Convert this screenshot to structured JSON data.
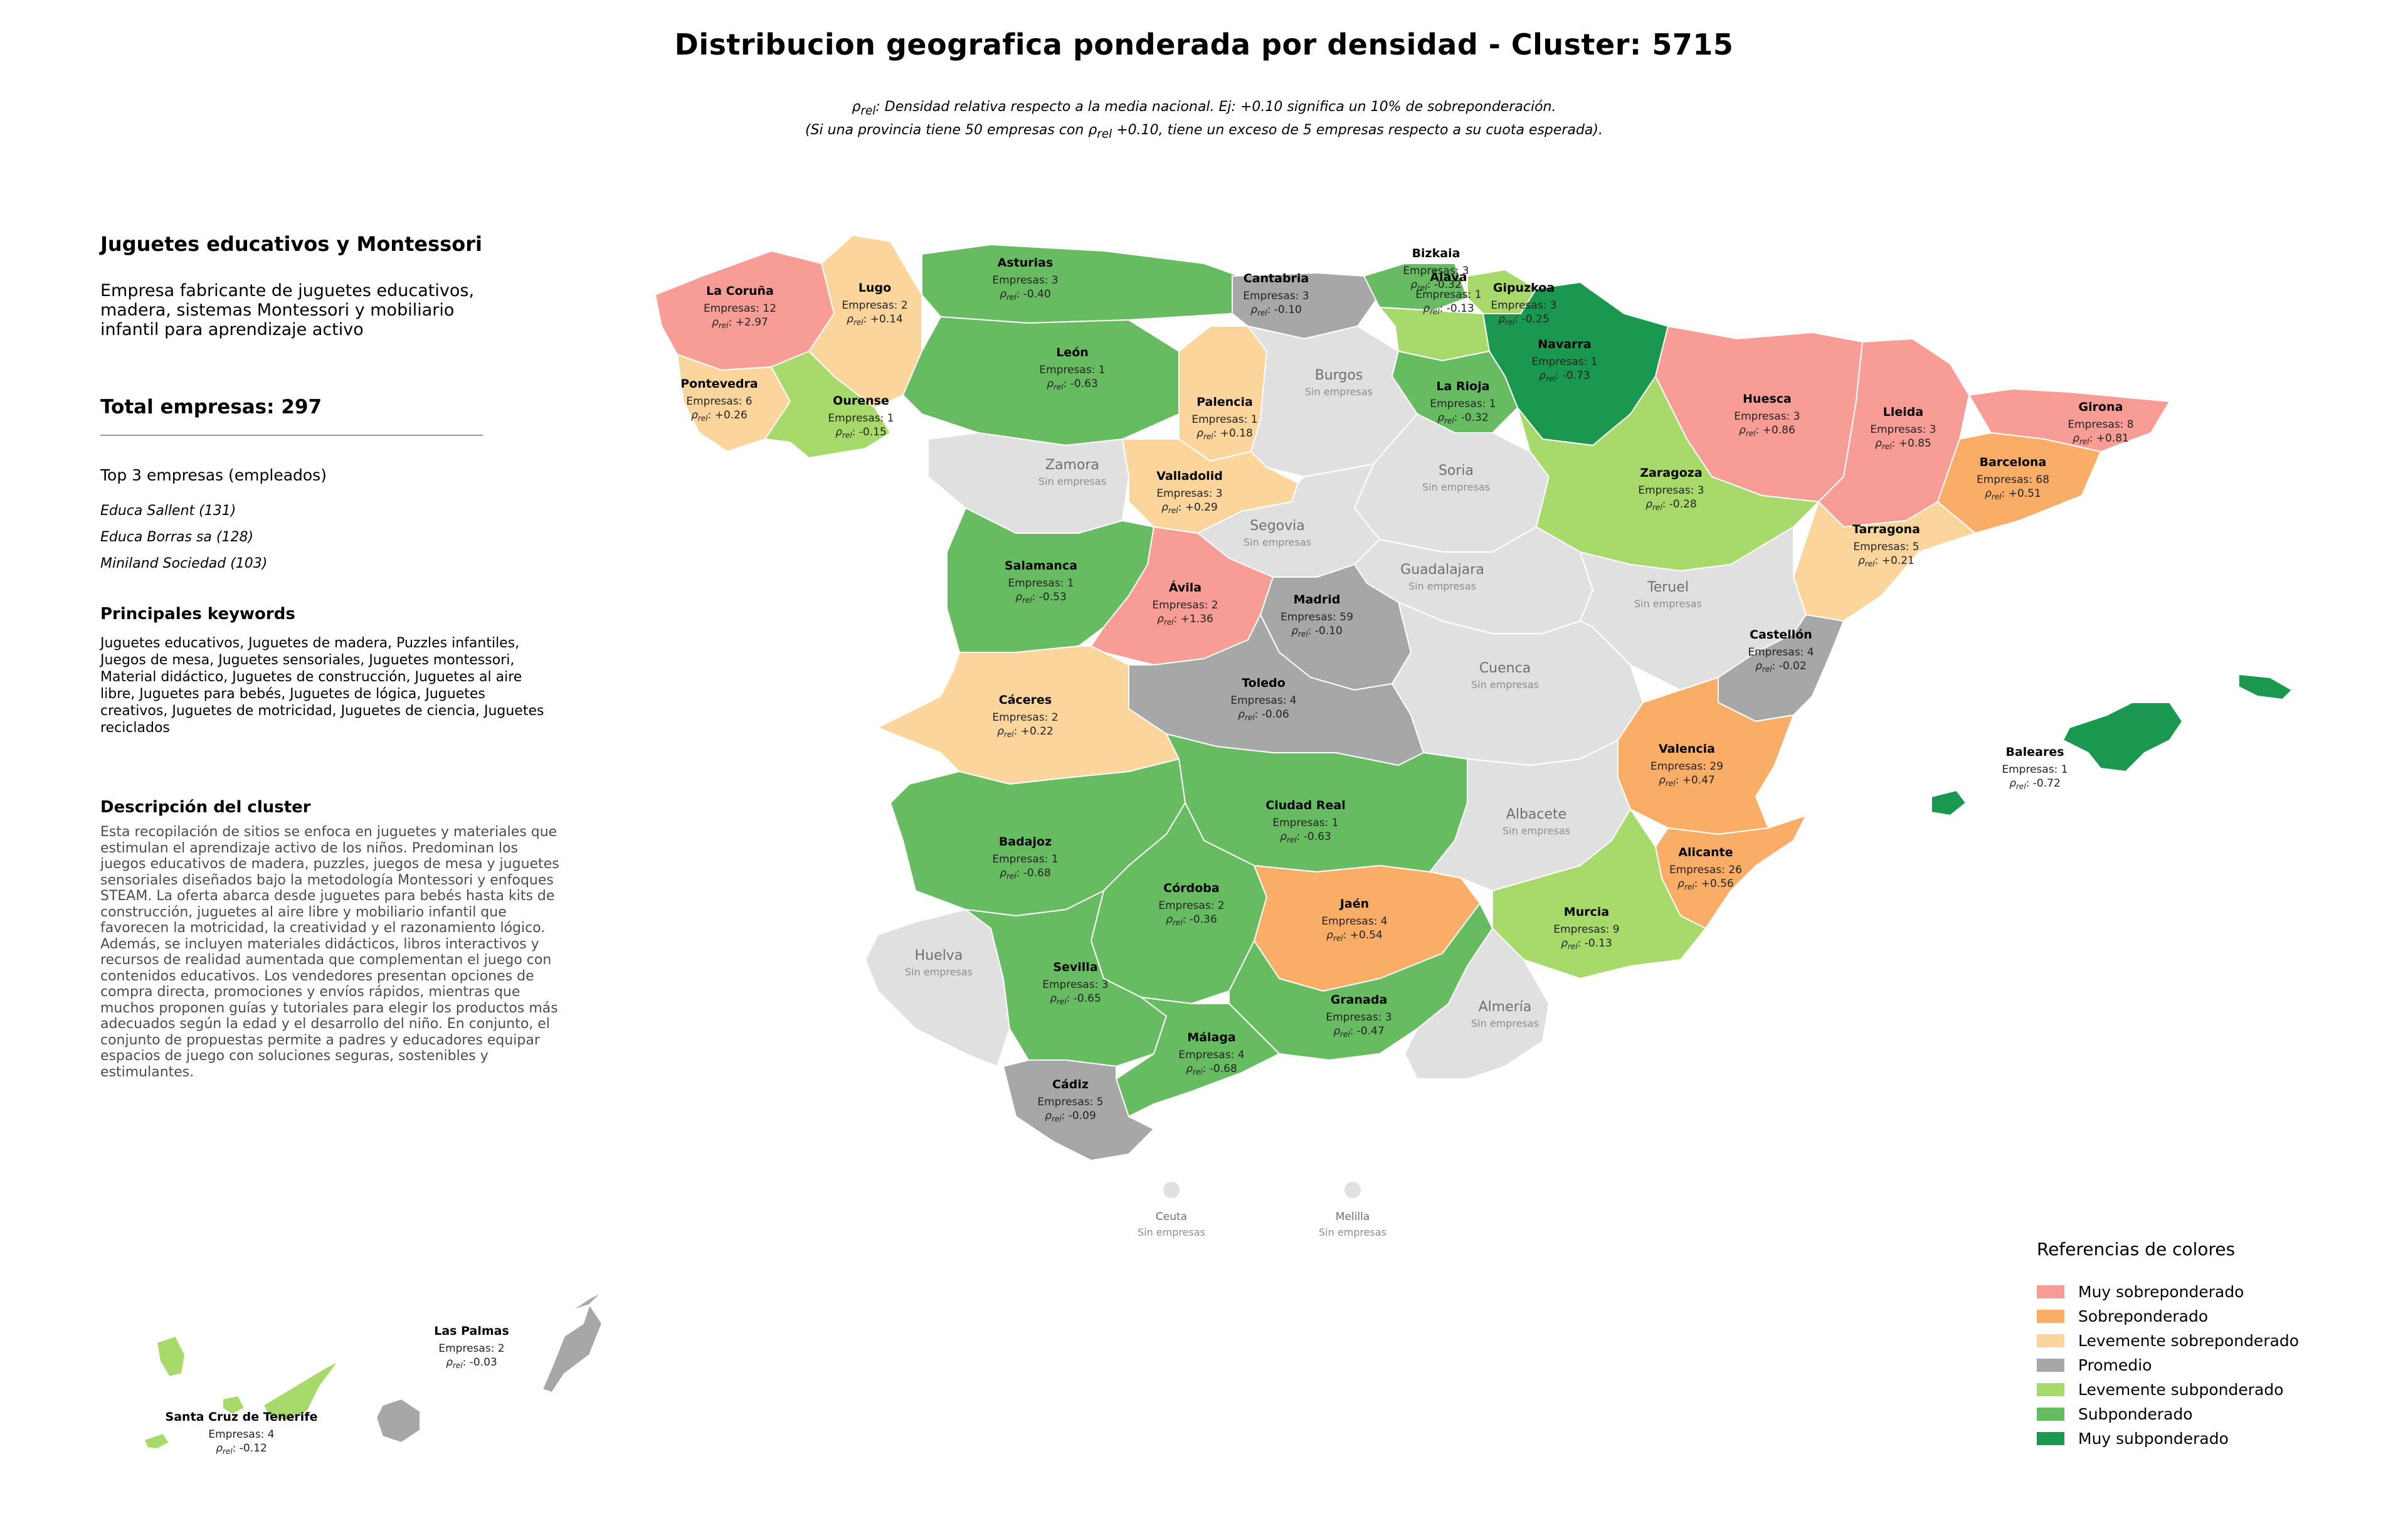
{
  "title": "Distribucion geografica ponderada por densidad - Cluster: 5715",
  "note": {
    "line1_pre": "ρ",
    "line1_sub": "rel",
    "line1_post": ": Densidad relativa respecto a la media nacional. Ej: +0.10 significa un 10% de sobreponderación.",
    "line2_pre": "(Si una provincia tiene 50 empresas con ρ",
    "line2_sub": "rel",
    "line2_post": " +0.10, tiene un exceso de 5 empresas respecto a su cuota esperada)."
  },
  "panel": {
    "cluster_name": "Juguetes educativos y Montessori",
    "cluster_summary": "Empresa fabricante de juguetes educativos, madera, sistemas Montessori y mobiliario infantil para aprendizaje activo",
    "total": "Total empresas: 297",
    "top_heading": "Top 3 empresas (empleados)",
    "top_companies": [
      "Educa Sallent (131)",
      "Educa Borras sa (128)",
      "Miniland Sociedad (103)"
    ],
    "keywords_heading": "Principales keywords",
    "keywords": "Juguetes educativos, Juguetes de madera, Puzzles infantiles, Juegos de mesa, Juguetes sensoriales, Juguetes montessori, Material didáctico, Juguetes de construcción, Juguetes al aire libre, Juguetes para bebés, Juguetes de lógica, Juguetes creativos, Juguetes de motricidad, Juguetes de ciencia, Juguetes reciclados",
    "description_heading": "Descripción del cluster",
    "description": "Esta recopilación de sitios se enfoca en juguetes y materiales que estimulan el aprendizaje activo de los niños. Predominan los juegos educativos de madera, puzzles, juegos de mesa y juguetes sensoriales diseñados bajo la metodología Montessori y enfoques STEAM. La oferta abarca desde juguetes para bebés hasta kits de construcción, juguetes al aire libre y mobiliario infantil que favorecen la motricidad, la creatividad y el razonamiento lógico. Además, se incluyen materiales didácticos, libros interactivos y recursos de realidad aumentada que complementan el juego con contenidos educativos. Los vendedores presentan opciones de compra directa, promociones y envíos rápidos, mientras que muchos proponen guías y tutoriales para elegir los productos más adecuados según la edad y el desarrollo del niño. En conjunto, el conjunto de propuestas permite a padres y educadores equipar espacios de juego con soluciones seguras, sostenibles y estimulantes."
  },
  "categories": {
    "muy_sobre": "#f89c96",
    "sobre": "#f9ad67",
    "lev_sobre": "#fbd59b",
    "promedio": "#a7a7a7",
    "lev_sub": "#a8d96b",
    "sub": "#67bc62",
    "muy_sub": "#1a9850",
    "sin": "#e0e0e0"
  },
  "legend": {
    "title": "Referencias de colores",
    "items": [
      {
        "label": "Muy sobreponderado",
        "color": "#f89c96"
      },
      {
        "label": "Sobreponderado",
        "color": "#f9ad67"
      },
      {
        "label": "Levemente sobreponderado",
        "color": "#fbd59b"
      },
      {
        "label": "Promedio",
        "color": "#a7a7a7"
      },
      {
        "label": "Levemente subponderado",
        "color": "#a8d96b"
      },
      {
        "label": "Subponderado",
        "color": "#67bc62"
      },
      {
        "label": "Muy subponderado",
        "color": "#1a9850"
      }
    ]
  },
  "label_templates": {
    "count_prefix": "Empresas: ",
    "rho": "ρ",
    "rho_sub": "rel",
    "none": "Sin empresas"
  },
  "provinces": [
    {
      "name": "La Coruña",
      "cat": "muy_sobre",
      "count": 12,
      "rho": "+2.97"
    },
    {
      "name": "Lugo",
      "cat": "lev_sobre",
      "count": 2,
      "rho": "+0.14"
    },
    {
      "name": "Asturias",
      "cat": "sub",
      "count": 3,
      "rho": "-0.40"
    },
    {
      "name": "Cantabria",
      "cat": "promedio",
      "count": 3,
      "rho": "-0.10"
    },
    {
      "name": "Bizkaia",
      "cat": "sub",
      "count": 3,
      "rho": "-0.32"
    },
    {
      "name": "Gipuzkoa",
      "cat": "lev_sub",
      "count": 3,
      "rho": "-0.25"
    },
    {
      "name": "Álava",
      "cat": "lev_sub",
      "count": 1,
      "rho": "-0.13"
    },
    {
      "name": "Navarra",
      "cat": "muy_sub",
      "count": 1,
      "rho": "-0.73"
    },
    {
      "name": "Pontevedra",
      "cat": "lev_sobre",
      "count": 6,
      "rho": "+0.26"
    },
    {
      "name": "Ourense",
      "cat": "lev_sub",
      "count": 1,
      "rho": "-0.15"
    },
    {
      "name": "León",
      "cat": "sub",
      "count": 1,
      "rho": "-0.63"
    },
    {
      "name": "Palencia",
      "cat": "lev_sobre",
      "count": 1,
      "rho": "+0.18"
    },
    {
      "name": "Burgos",
      "cat": "sin"
    },
    {
      "name": "La Rioja",
      "cat": "sub",
      "count": 1,
      "rho": "-0.32"
    },
    {
      "name": "Huesca",
      "cat": "muy_sobre",
      "count": 3,
      "rho": "+0.86"
    },
    {
      "name": "Lleida",
      "cat": "muy_sobre",
      "count": 3,
      "rho": "+0.85"
    },
    {
      "name": "Girona",
      "cat": "muy_sobre",
      "count": 8,
      "rho": "+0.81"
    },
    {
      "name": "Barcelona",
      "cat": "sobre",
      "count": 68,
      "rho": "+0.51"
    },
    {
      "name": "Zamora",
      "cat": "sin"
    },
    {
      "name": "Valladolid",
      "cat": "lev_sobre",
      "count": 3,
      "rho": "+0.29"
    },
    {
      "name": "Soria",
      "cat": "sin"
    },
    {
      "name": "Zaragoza",
      "cat": "lev_sub",
      "count": 3,
      "rho": "-0.28"
    },
    {
      "name": "Tarragona",
      "cat": "lev_sobre",
      "count": 5,
      "rho": "+0.21"
    },
    {
      "name": "Segovia",
      "cat": "sin"
    },
    {
      "name": "Salamanca",
      "cat": "sub",
      "count": 1,
      "rho": "-0.53"
    },
    {
      "name": "Guadalajara",
      "cat": "sin"
    },
    {
      "name": "Teruel",
      "cat": "sin"
    },
    {
      "name": "Madrid",
      "cat": "promedio",
      "count": 59,
      "rho": "-0.10"
    },
    {
      "name": "Ávila",
      "cat": "muy_sobre",
      "count": 2,
      "rho": "+1.36"
    },
    {
      "name": "Castellón",
      "cat": "promedio",
      "count": 4,
      "rho": "-0.02"
    },
    {
      "name": "Toledo",
      "cat": "promedio",
      "count": 4,
      "rho": "-0.06"
    },
    {
      "name": "Cuenca",
      "cat": "sin"
    },
    {
      "name": "Cáceres",
      "cat": "lev_sobre",
      "count": 2,
      "rho": "+0.22"
    },
    {
      "name": "Valencia",
      "cat": "sobre",
      "count": 29,
      "rho": "+0.47"
    },
    {
      "name": "Baleares",
      "cat": "muy_sub",
      "count": 1,
      "rho": "-0.72"
    },
    {
      "name": "Ciudad Real",
      "cat": "sub",
      "count": 1,
      "rho": "-0.63"
    },
    {
      "name": "Albacete",
      "cat": "sin"
    },
    {
      "name": "Badajoz",
      "cat": "sub",
      "count": 1,
      "rho": "-0.68"
    },
    {
      "name": "Alicante",
      "cat": "sobre",
      "count": 26,
      "rho": "+0.56"
    },
    {
      "name": "Córdoba",
      "cat": "sub",
      "count": 2,
      "rho": "-0.36"
    },
    {
      "name": "Jaén",
      "cat": "sobre",
      "count": 4,
      "rho": "+0.54"
    },
    {
      "name": "Murcia",
      "cat": "lev_sub",
      "count": 9,
      "rho": "-0.13"
    },
    {
      "name": "Huelva",
      "cat": "sin"
    },
    {
      "name": "Sevilla",
      "cat": "sub",
      "count": 3,
      "rho": "-0.65"
    },
    {
      "name": "Granada",
      "cat": "sub",
      "count": 3,
      "rho": "-0.47"
    },
    {
      "name": "Almería",
      "cat": "sin"
    },
    {
      "name": "Málaga",
      "cat": "sub",
      "count": 4,
      "rho": "-0.68"
    },
    {
      "name": "Cádiz",
      "cat": "promedio",
      "count": 5,
      "rho": "-0.09"
    },
    {
      "name": "Ceuta",
      "cat": "sin"
    },
    {
      "name": "Melilla",
      "cat": "sin"
    },
    {
      "name": "Las Palmas",
      "cat": "promedio",
      "count": 2,
      "rho": "-0.03"
    },
    {
      "name": "Santa Cruz de Tenerife",
      "cat": "lev_sub",
      "count": 4,
      "rho": "-0.12"
    }
  ]
}
